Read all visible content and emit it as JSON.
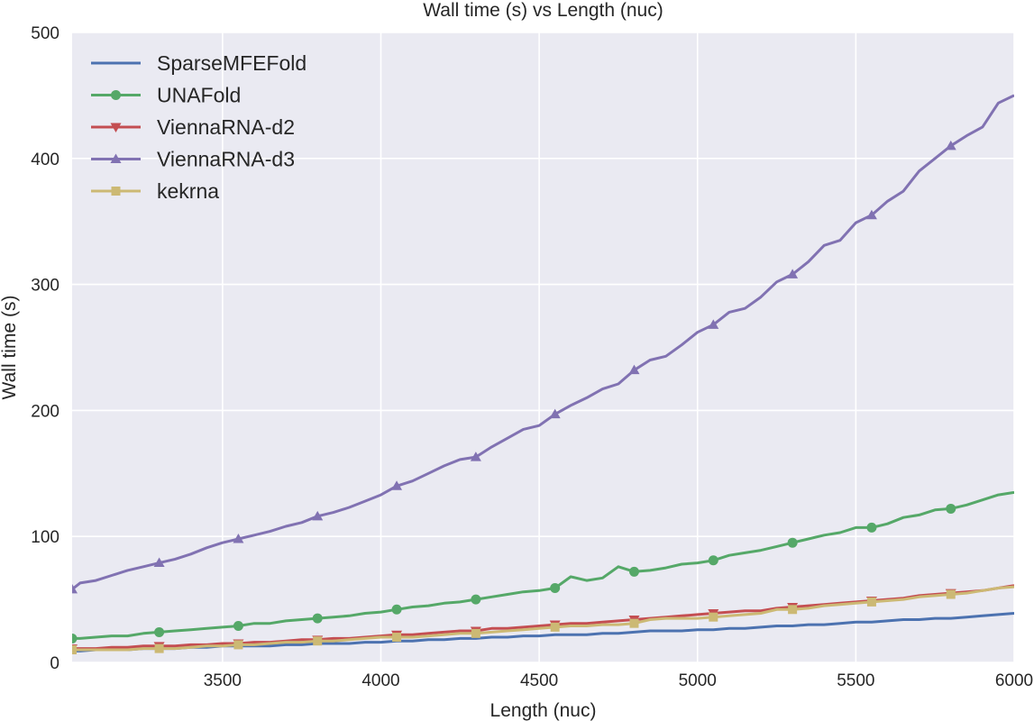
{
  "chart_data": {
    "type": "line",
    "title": "Wall time (s) vs Length (nuc)",
    "xlabel": "Length (nuc)",
    "ylabel": "Wall time (s)",
    "xlim": [
      3025,
      6000
    ],
    "ylim": [
      0,
      500
    ],
    "xticks": [
      3500,
      4000,
      4500,
      5000,
      5500,
      6000
    ],
    "yticks": [
      0,
      100,
      200,
      300,
      400,
      500
    ],
    "grid": true,
    "legend_position": "top-left",
    "x": [
      3025,
      3050,
      3100,
      3150,
      3200,
      3250,
      3300,
      3350,
      3400,
      3450,
      3500,
      3550,
      3600,
      3650,
      3700,
      3750,
      3800,
      3850,
      3900,
      3950,
      4000,
      4050,
      4100,
      4150,
      4200,
      4250,
      4300,
      4350,
      4400,
      4450,
      4500,
      4550,
      4600,
      4650,
      4700,
      4750,
      4800,
      4850,
      4900,
      4950,
      5000,
      5050,
      5100,
      5150,
      5200,
      5250,
      5300,
      5350,
      5400,
      5450,
      5500,
      5550,
      5600,
      5650,
      5700,
      5750,
      5800,
      5850,
      5900,
      5950,
      6000
    ],
    "series": [
      {
        "name": "SparseMFEFold",
        "color": "#4c72b0",
        "marker": "none",
        "values": [
          9,
          9,
          10,
          10,
          10,
          11,
          11,
          11,
          12,
          12,
          13,
          13,
          13,
          13,
          14,
          14,
          15,
          15,
          15,
          16,
          16,
          17,
          17,
          18,
          18,
          19,
          19,
          20,
          20,
          21,
          21,
          22,
          22,
          22,
          23,
          23,
          24,
          25,
          25,
          25,
          26,
          26,
          27,
          27,
          28,
          29,
          29,
          30,
          30,
          31,
          32,
          32,
          33,
          34,
          34,
          35,
          35,
          36,
          37,
          38,
          39
        ]
      },
      {
        "name": "UNAFold",
        "color": "#55a868",
        "marker": "circle",
        "values": [
          19,
          19,
          20,
          21,
          21,
          23,
          24,
          25,
          26,
          27,
          28,
          29,
          31,
          31,
          33,
          34,
          35,
          36,
          37,
          39,
          40,
          42,
          44,
          45,
          47,
          48,
          50,
          52,
          54,
          56,
          57,
          59,
          68,
          65,
          67,
          76,
          72,
          73,
          75,
          78,
          79,
          81,
          85,
          87,
          89,
          92,
          95,
          98,
          101,
          103,
          107,
          107,
          110,
          115,
          117,
          121,
          122,
          125,
          129,
          133,
          135
        ]
      },
      {
        "name": "ViennaRNA-d2",
        "color": "#c44e52",
        "marker": "triangle-down",
        "values": [
          11,
          11,
          11,
          12,
          12,
          13,
          13,
          13,
          14,
          14,
          15,
          15,
          16,
          16,
          17,
          18,
          18,
          19,
          19,
          20,
          21,
          22,
          22,
          23,
          24,
          25,
          25,
          27,
          27,
          28,
          29,
          30,
          31,
          31,
          32,
          33,
          34,
          35,
          36,
          37,
          38,
          39,
          40,
          41,
          41,
          43,
          44,
          45,
          46,
          47,
          48,
          49,
          50,
          51,
          53,
          54,
          55,
          56,
          57,
          59,
          61
        ]
      },
      {
        "name": "ViennaRNA-d3",
        "color": "#8172b2",
        "marker": "triangle-up",
        "values": [
          58,
          63,
          65,
          69,
          73,
          76,
          79,
          82,
          86,
          91,
          95,
          98,
          101,
          104,
          108,
          111,
          116,
          119,
          123,
          128,
          133,
          140,
          144,
          150,
          156,
          161,
          163,
          171,
          178,
          185,
          188,
          197,
          204,
          210,
          217,
          221,
          232,
          240,
          243,
          252,
          262,
          268,
          278,
          281,
          290,
          302,
          308,
          318,
          331,
          335,
          349,
          355,
          366,
          374,
          390,
          400,
          410,
          418,
          425,
          444,
          450
        ]
      },
      {
        "name": "kekrna",
        "color": "#ccb974",
        "marker": "square",
        "values": [
          10,
          10,
          10,
          10,
          10,
          11,
          11,
          11,
          12,
          13,
          13,
          14,
          14,
          15,
          16,
          16,
          17,
          17,
          18,
          19,
          20,
          20,
          20,
          21,
          22,
          23,
          23,
          24,
          25,
          26,
          27,
          28,
          29,
          29,
          30,
          30,
          31,
          34,
          35,
          35,
          35,
          36,
          37,
          38,
          39,
          42,
          42,
          43,
          45,
          46,
          47,
          48,
          49,
          50,
          52,
          53,
          54,
          55,
          57,
          59,
          60
        ]
      }
    ]
  }
}
